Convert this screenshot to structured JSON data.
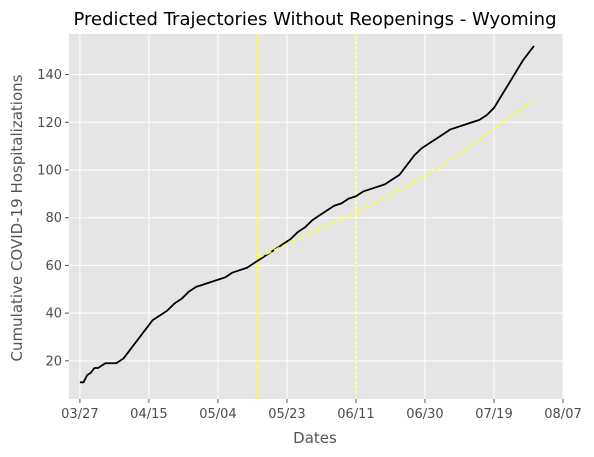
{
  "chart_data": {
    "type": "line",
    "title": "Predicted Trajectories Without Reopenings - Wyoming",
    "xlabel": "Dates",
    "ylabel": "Cumulative COVID-19 Hospitalizations",
    "x_tick_labels": [
      "03/27",
      "04/15",
      "05/04",
      "05/23",
      "06/11",
      "06/30",
      "07/19",
      "08/07"
    ],
    "y_ticks": [
      20,
      40,
      60,
      80,
      100,
      120,
      140
    ],
    "xlim": [
      "2020-03-24",
      "2020-08-07"
    ],
    "ylim": [
      4,
      157
    ],
    "grid": true,
    "colors": {
      "background": "#e5e5e5",
      "grid": "#ffffff",
      "actual": "#000000",
      "predicted": "#ffff33",
      "vlines": "#ffff33"
    },
    "vertical_lines": [
      {
        "date": "2020-05-15",
        "style": "solid"
      },
      {
        "date": "2020-06-11",
        "style": "dotted"
      }
    ],
    "series": [
      {
        "style": "solid",
        "color": "#000000",
        "points": [
          [
            "2020-03-27",
            11
          ],
          [
            "2020-03-28",
            11
          ],
          [
            "2020-03-29",
            14
          ],
          [
            "2020-03-30",
            15
          ],
          [
            "2020-03-31",
            17
          ],
          [
            "2020-04-01",
            17
          ],
          [
            "2020-04-02",
            18
          ],
          [
            "2020-04-03",
            19
          ],
          [
            "2020-04-05",
            19
          ],
          [
            "2020-04-06",
            19
          ],
          [
            "2020-04-07",
            20
          ],
          [
            "2020-04-08",
            21
          ],
          [
            "2020-04-10",
            25
          ],
          [
            "2020-04-12",
            29
          ],
          [
            "2020-04-14",
            33
          ],
          [
            "2020-04-16",
            37
          ],
          [
            "2020-04-18",
            39
          ],
          [
            "2020-04-20",
            41
          ],
          [
            "2020-04-22",
            44
          ],
          [
            "2020-04-24",
            46
          ],
          [
            "2020-04-26",
            49
          ],
          [
            "2020-04-28",
            51
          ],
          [
            "2020-04-30",
            52
          ],
          [
            "2020-05-02",
            53
          ],
          [
            "2020-05-04",
            54
          ],
          [
            "2020-05-06",
            55
          ],
          [
            "2020-05-08",
            57
          ],
          [
            "2020-05-10",
            58
          ],
          [
            "2020-05-12",
            59
          ],
          [
            "2020-05-14",
            61
          ],
          [
            "2020-05-16",
            63
          ],
          [
            "2020-05-18",
            65
          ],
          [
            "2020-05-20",
            67
          ],
          [
            "2020-05-22",
            69
          ],
          [
            "2020-05-24",
            71
          ],
          [
            "2020-05-26",
            74
          ],
          [
            "2020-05-28",
            76
          ],
          [
            "2020-05-30",
            79
          ],
          [
            "2020-06-01",
            81
          ],
          [
            "2020-06-03",
            83
          ],
          [
            "2020-06-05",
            85
          ],
          [
            "2020-06-07",
            86
          ],
          [
            "2020-06-09",
            88
          ],
          [
            "2020-06-11",
            89
          ],
          [
            "2020-06-13",
            91
          ],
          [
            "2020-06-15",
            92
          ],
          [
            "2020-06-17",
            93
          ],
          [
            "2020-06-19",
            94
          ],
          [
            "2020-06-21",
            96
          ],
          [
            "2020-06-23",
            98
          ],
          [
            "2020-06-25",
            102
          ],
          [
            "2020-06-27",
            106
          ],
          [
            "2020-06-29",
            109
          ],
          [
            "2020-07-01",
            111
          ],
          [
            "2020-07-03",
            113
          ],
          [
            "2020-07-05",
            115
          ],
          [
            "2020-07-07",
            117
          ],
          [
            "2020-07-09",
            118
          ],
          [
            "2020-07-11",
            119
          ],
          [
            "2020-07-13",
            120
          ],
          [
            "2020-07-15",
            121
          ],
          [
            "2020-07-17",
            123
          ],
          [
            "2020-07-19",
            126
          ],
          [
            "2020-07-21",
            131
          ],
          [
            "2020-07-23",
            136
          ],
          [
            "2020-07-25",
            141
          ],
          [
            "2020-07-27",
            146
          ],
          [
            "2020-07-29",
            150
          ],
          [
            "2020-07-30",
            152
          ]
        ]
      },
      {
        "style": "dashed",
        "color": "#ffff33",
        "points": [
          [
            "2020-05-15",
            63
          ],
          [
            "2020-05-23",
            69
          ],
          [
            "2020-06-01",
            75
          ],
          [
            "2020-06-11",
            82
          ],
          [
            "2020-06-20",
            89
          ],
          [
            "2020-06-30",
            97
          ],
          [
            "2020-07-10",
            107
          ],
          [
            "2020-07-19",
            117
          ],
          [
            "2020-07-30",
            129
          ]
        ]
      }
    ]
  }
}
